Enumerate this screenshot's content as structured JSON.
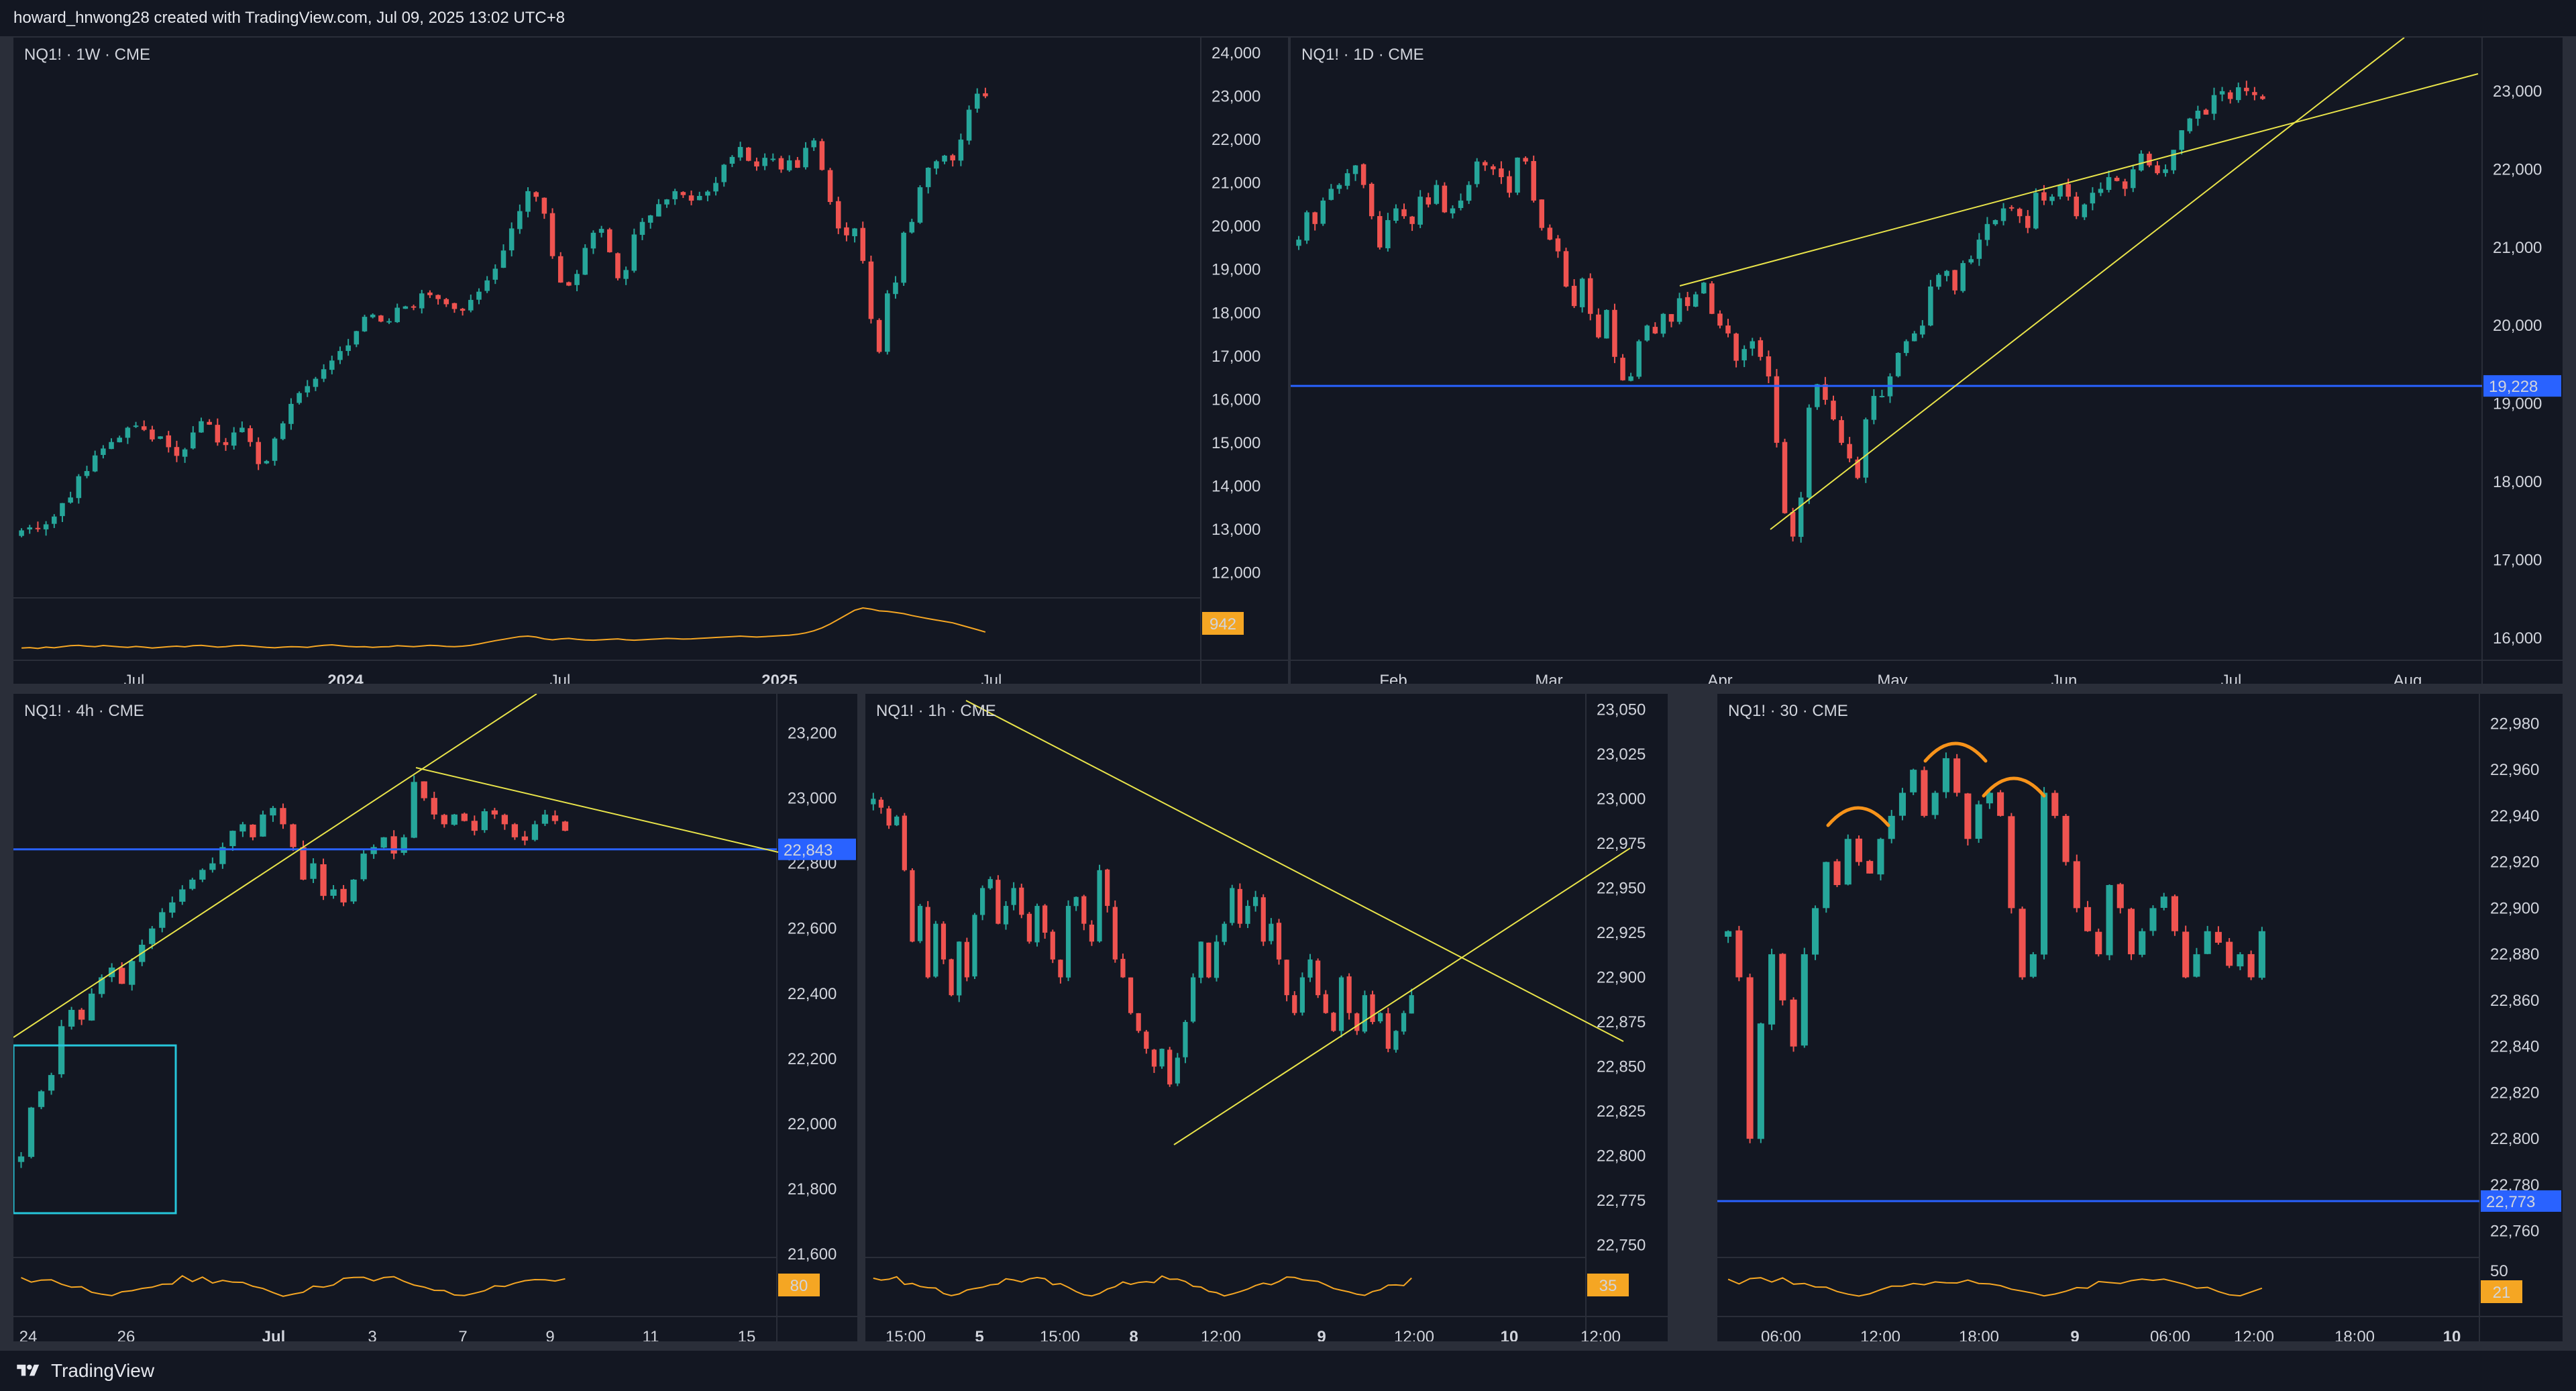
{
  "header": {
    "text": "howard_hnwong28 created with TradingView.com, Jul 09, 2025 13:02 UTC+8"
  },
  "footer": {
    "brand": "TradingView"
  },
  "colors": {
    "up": "#26a69a",
    "down": "#ef5350",
    "trend": "#e9e44a",
    "level": "#2962ff",
    "volume": "#f5a623",
    "box": "#26c6da",
    "pattern": "#f7931a"
  },
  "chart_data": [
    {
      "id": "weekly",
      "type": "candlestick",
      "title": "NQ1! · 1W · CME",
      "ylim": [
        11500,
        24200
      ],
      "yticks": [
        "24,000",
        "23,000",
        "22,000",
        "21,000",
        "20,000",
        "19,000",
        "18,000",
        "17,000",
        "16,000",
        "15,000",
        "14,000",
        "13,000",
        "12,000"
      ],
      "xticks": [
        {
          "label": "Jul",
          "bold": false
        },
        {
          "label": "2024",
          "bold": true
        },
        {
          "label": "Jul",
          "bold": false
        },
        {
          "label": "2025",
          "bold": true
        },
        {
          "label": "Jul",
          "bold": false
        }
      ],
      "volume_badge": "942",
      "closes": [
        12980,
        13050,
        13010,
        13120,
        13300,
        13610,
        13740,
        14230,
        14350,
        14710,
        14870,
        15020,
        15120,
        15350,
        15400,
        15300,
        15080,
        15150,
        14900,
        14700,
        14850,
        15240,
        15500,
        15420,
        15010,
        14950,
        15240,
        15350,
        15020,
        14510,
        14580,
        15100,
        15450,
        15900,
        16150,
        16310,
        16480,
        16700,
        16900,
        17120,
        17250,
        17580,
        17910,
        17960,
        17800,
        17810,
        18120,
        18150,
        18130,
        18450,
        18410,
        18320,
        18200,
        18090,
        18050,
        18300,
        18490,
        18750,
        19020,
        19440,
        19950,
        20350,
        20810,
        20680,
        20290,
        19310,
        18700,
        18630,
        18900,
        19500,
        19850,
        19940,
        19400,
        18800,
        18990,
        19810,
        20100,
        20250,
        20510,
        20620,
        20810,
        20720,
        20590,
        20700,
        20800,
        21000,
        21420,
        21600,
        21830,
        21510,
        21380,
        21580,
        21560,
        21310,
        21520,
        21350,
        21810,
        21980,
        21300,
        20560,
        19950,
        19790,
        19950,
        19200,
        17860,
        17100,
        18450,
        18700,
        19850,
        20100,
        20900,
        21350,
        21500,
        21630,
        21520,
        22000,
        22690,
        23060,
        23000
      ],
      "opens": [
        null,
        null,
        null,
        null,
        null,
        null,
        null,
        null,
        null,
        null,
        null,
        null,
        null,
        null,
        null,
        null,
        null,
        null,
        null,
        null,
        null,
        null,
        null,
        null,
        null,
        null,
        null,
        null,
        null,
        null,
        null,
        null,
        null,
        null,
        null,
        null,
        null,
        null,
        null,
        null,
        null,
        null,
        null,
        null,
        null,
        null,
        null,
        null,
        null,
        null,
        null,
        null,
        null,
        null,
        null,
        null,
        null,
        null,
        null,
        null,
        null,
        null,
        null,
        null,
        null,
        null,
        null,
        null,
        null,
        null,
        null,
        null,
        null,
        null,
        null,
        null,
        null,
        null,
        null,
        null,
        null,
        null,
        null,
        null,
        null,
        null,
        null,
        null,
        null,
        null,
        null,
        null,
        null,
        null,
        null,
        null,
        null,
        null,
        null,
        null,
        null,
        null,
        null,
        null,
        null,
        null,
        null,
        null,
        null,
        null,
        null,
        null,
        null,
        null,
        null,
        null,
        null,
        null,
        null
      ],
      "volume": [
        0.3,
        0.32,
        0.28,
        0.34,
        0.31,
        0.36,
        0.4,
        0.42,
        0.38,
        0.36,
        0.41,
        0.38,
        0.35,
        0.33,
        0.37,
        0.34,
        0.3,
        0.33,
        0.36,
        0.38,
        0.35,
        0.4,
        0.42,
        0.38,
        0.34,
        0.36,
        0.4,
        0.42,
        0.39,
        0.36,
        0.33,
        0.31,
        0.34,
        0.36,
        0.35,
        0.33,
        0.38,
        0.42,
        0.44,
        0.4,
        0.37,
        0.35,
        0.36,
        0.33,
        0.35,
        0.36,
        0.4,
        0.38,
        0.36,
        0.39,
        0.42,
        0.4,
        0.37,
        0.36,
        0.38,
        0.42,
        0.48,
        0.55,
        0.62,
        0.68,
        0.74,
        0.8,
        0.82,
        0.78,
        0.7,
        0.66,
        0.7,
        0.72,
        0.68,
        0.65,
        0.64,
        0.66,
        0.68,
        0.7,
        0.66,
        0.64,
        0.66,
        0.68,
        0.7,
        0.72,
        0.71,
        0.69,
        0.7,
        0.72,
        0.74,
        0.76,
        0.78,
        0.8,
        0.82,
        0.8,
        0.78,
        0.8,
        0.82,
        0.84,
        0.86,
        0.9,
        0.96,
        1.05,
        1.18,
        1.35,
        1.55,
        1.75,
        1.95,
        2.05,
        2.0,
        1.92,
        1.9,
        1.85,
        1.8,
        1.72,
        1.65,
        1.58,
        1.52,
        1.46,
        1.4,
        1.3,
        1.2,
        1.1,
        1.0
      ]
    },
    {
      "id": "daily",
      "type": "candlestick",
      "title": "NQ1! · 1D · CME",
      "ylim": [
        15700,
        23600
      ],
      "yticks": [
        "23,000",
        "22,000",
        "21,000",
        "20,000",
        "19,000",
        "18,000",
        "17,000",
        "16,000"
      ],
      "xticks": [
        {
          "label": "Feb",
          "bold": false
        },
        {
          "label": "Mar",
          "bold": false
        },
        {
          "label": "Apr",
          "bold": false
        },
        {
          "label": "May",
          "bold": false
        },
        {
          "label": "Jun",
          "bold": false
        },
        {
          "label": "Jul",
          "bold": false
        },
        {
          "label": "Aug",
          "bold": false
        }
      ],
      "level": {
        "value": 19228,
        "label": "19,228"
      },
      "closes": [
        21100,
        21450,
        21300,
        21600,
        21750,
        21800,
        21950,
        22050,
        21800,
        21400,
        21000,
        21350,
        21500,
        21400,
        21300,
        21650,
        21550,
        21800,
        21450,
        21500,
        21600,
        21800,
        22100,
        22050,
        22000,
        21900,
        21700,
        22150,
        22100,
        21600,
        21250,
        21100,
        20950,
        20500,
        20250,
        20600,
        20150,
        19850,
        20200,
        19600,
        19300,
        19350,
        19800,
        20000,
        19900,
        20150,
        20050,
        20350,
        20250,
        20400,
        20550,
        20150,
        20000,
        19900,
        19550,
        19700,
        19800,
        19600,
        19350,
        18500,
        17600,
        17300,
        17800,
        18950,
        19250,
        19050,
        18800,
        18500,
        18300,
        18050,
        18800,
        19100,
        19100,
        19350,
        19650,
        19800,
        19900,
        20000,
        20500,
        20650,
        20700,
        20450,
        20800,
        20850,
        21100,
        21300,
        21350,
        21500,
        21500,
        21400,
        21250,
        21700,
        21600,
        21650,
        21800,
        21650,
        21400,
        21550,
        21700,
        21750,
        21900,
        21850,
        21750,
        22000,
        22200,
        22050,
        21950,
        22000,
        22250,
        22500,
        22650,
        22750,
        22700,
        22950,
        23000,
        22900,
        23050,
        23000,
        22950,
        22900
      ],
      "volume": []
    },
    {
      "id": "h4",
      "type": "candlestick",
      "title": "NQ1! · 4h · CME",
      "ylim": [
        21600,
        23300
      ],
      "yticks": [
        "23,200",
        "23,000",
        "22,800",
        "22,600",
        "22,400",
        "22,200",
        "22,000",
        "21,800",
        "21,600"
      ],
      "xticks": [
        {
          "label": "24",
          "bold": false
        },
        {
          "label": "26",
          "bold": false
        },
        {
          "label": "Jul",
          "bold": true
        },
        {
          "label": "3",
          "bold": false
        },
        {
          "label": "7",
          "bold": false
        },
        {
          "label": "9",
          "bold": false
        },
        {
          "label": "11",
          "bold": false
        },
        {
          "label": "15",
          "bold": false
        }
      ],
      "level": {
        "value": 22843,
        "label": "22,843"
      },
      "volume_badge": "80",
      "closes": [
        21900,
        22050,
        22100,
        22150,
        22300,
        22350,
        22320,
        22400,
        22450,
        22480,
        22430,
        22500,
        22550,
        22600,
        22650,
        22680,
        22720,
        22750,
        22780,
        22800,
        22850,
        22900,
        22920,
        22880,
        22950,
        22970,
        22920,
        22850,
        22750,
        22800,
        22700,
        22720,
        22680,
        22750,
        22830,
        22850,
        22880,
        22830,
        22880,
        23050,
        23000,
        22950,
        22920,
        22950,
        22930,
        22900,
        22960,
        22950,
        22920,
        22880,
        22870,
        22920,
        22950,
        22930,
        22900
      ],
      "volume": []
    },
    {
      "id": "h1",
      "type": "candlestick",
      "title": "NQ1! · 1h · CME",
      "ylim": [
        22745,
        23055
      ],
      "yticks": [
        "23,050",
        "23,025",
        "23,000",
        "22,975",
        "22,950",
        "22,925",
        "22,900",
        "22,875",
        "22,850",
        "22,825",
        "22,800",
        "22,775",
        "22,750"
      ],
      "xticks": [
        {
          "label": "15:00",
          "bold": false
        },
        {
          "label": "5",
          "bold": true
        },
        {
          "label": "15:00",
          "bold": false
        },
        {
          "label": "8",
          "bold": true
        },
        {
          "label": "12:00",
          "bold": false
        },
        {
          "label": "9",
          "bold": true
        },
        {
          "label": "12:00",
          "bold": false
        },
        {
          "label": "10",
          "bold": true
        },
        {
          "label": "12:00",
          "bold": false
        }
      ],
      "volume_badge": "35",
      "closes": [
        23000,
        22995,
        22985,
        22990,
        22960,
        22920,
        22940,
        22900,
        22930,
        22910,
        22890,
        22920,
        22900,
        22935,
        22950,
        22955,
        22930,
        22940,
        22950,
        22935,
        22920,
        22940,
        22925,
        22910,
        22900,
        22940,
        22945,
        22930,
        22920,
        22960,
        22940,
        22910,
        22900,
        22880,
        22870,
        22860,
        22850,
        22860,
        22840,
        22855,
        22875,
        22900,
        22920,
        22900,
        22920,
        22930,
        22950,
        22930,
        22940,
        22945,
        22920,
        22930,
        22910,
        22890,
        22880,
        22900,
        22910,
        22890,
        22880,
        22870,
        22900,
        22880,
        22870,
        22890,
        22875,
        22880,
        22860,
        22870,
        22880,
        22890
      ],
      "volume": []
    },
    {
      "id": "m30",
      "type": "candlestick",
      "title": "NQ1! · 30 · CME",
      "ylim": [
        22750,
        22990
      ],
      "yticks": [
        "22,980",
        "22,960",
        "22,940",
        "22,920",
        "22,900",
        "22,880",
        "22,860",
        "22,840",
        "22,820",
        "22,800",
        "22,780",
        "22,760"
      ],
      "xticks": [
        {
          "label": "06:00",
          "bold": false
        },
        {
          "label": "12:00",
          "bold": false
        },
        {
          "label": "18:00",
          "bold": false
        },
        {
          "label": "9",
          "bold": true
        },
        {
          "label": "06:00",
          "bold": false
        },
        {
          "label": "12:00",
          "bold": false
        },
        {
          "label": "18:00",
          "bold": false
        },
        {
          "label": "10",
          "bold": true
        }
      ],
      "level": {
        "value": 22773,
        "label": "22,773"
      },
      "volume_badge": "21",
      "volume_tick": "50",
      "closes": [
        22890,
        22870,
        22800,
        22850,
        22880,
        22860,
        22840,
        22880,
        22900,
        22920,
        22910,
        22930,
        22920,
        22915,
        22930,
        22940,
        22950,
        22960,
        22940,
        22950,
        22965,
        22950,
        22930,
        22945,
        22950,
        22940,
        22900,
        22870,
        22880,
        22950,
        22940,
        22920,
        22900,
        22890,
        22880,
        22910,
        22900,
        22880,
        22890,
        22900,
        22905,
        22890,
        22870,
        22880,
        22890,
        22885,
        22875,
        22880,
        22870,
        22890
      ],
      "volume": []
    }
  ]
}
